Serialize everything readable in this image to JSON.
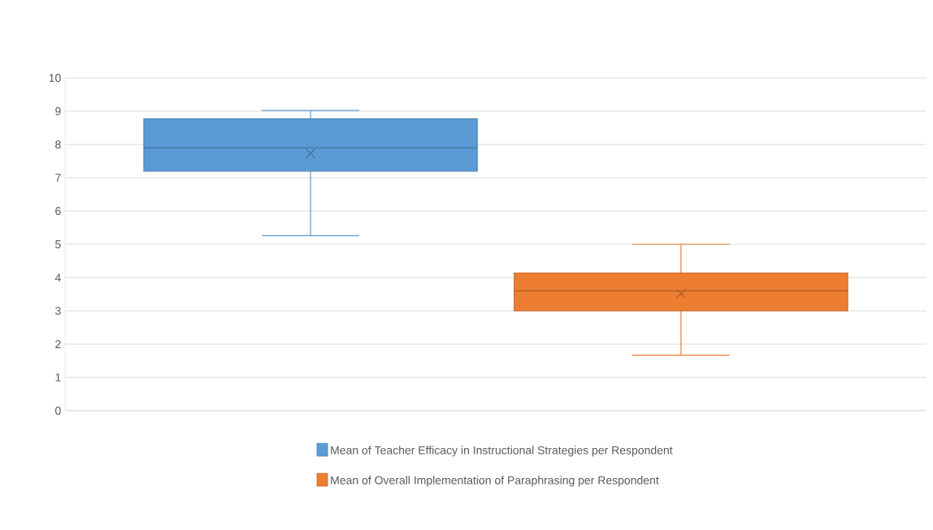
{
  "chart_data": {
    "type": "box",
    "categories": [
      null
    ],
    "series": [
      {
        "name": "Mean of Teacher Efficacy in Instructional Strategies per Respondent",
        "color": "#5b9bd5",
        "boxes": [
          {
            "low": 5.26,
            "q1": 7.2,
            "median": 7.9,
            "q3": 8.77,
            "high": 9.02,
            "mean": 7.73
          }
        ]
      },
      {
        "name": "Mean of Overall Implementation of Paraphrasing per Respondent",
        "color": "#ed7d31",
        "boxes": [
          {
            "low": 1.67,
            "q1": 3.0,
            "median": 3.6,
            "q3": 4.14,
            "high": 5.0,
            "mean": 3.52
          }
        ]
      }
    ],
    "ylim": [
      0,
      10
    ],
    "yticks": [
      0,
      1,
      2,
      3,
      4,
      5,
      6,
      7,
      8,
      9,
      10
    ],
    "grid": "y",
    "legend": "bottom",
    "tick_labels": "y",
    "marker": "cross"
  }
}
